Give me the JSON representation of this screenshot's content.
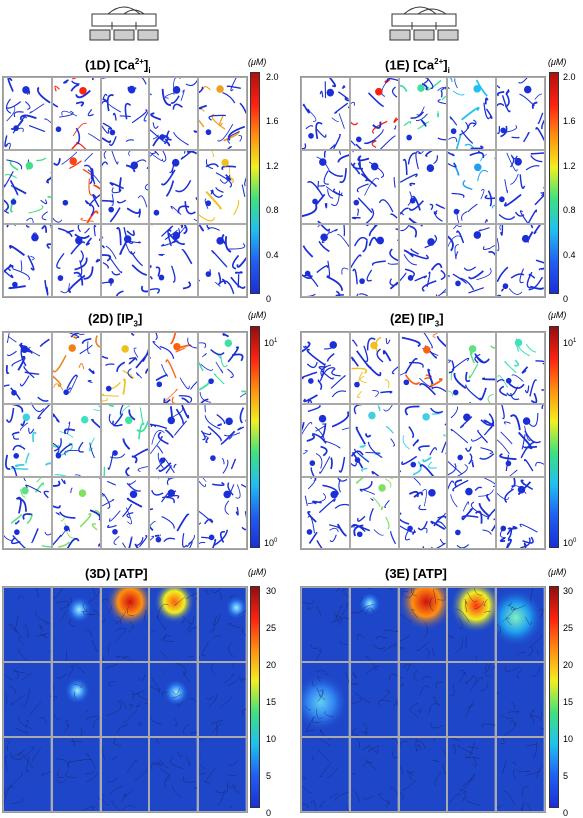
{
  "panels": [
    {
      "id": "1D",
      "title_main": "(1D) [Ca",
      "title_sup": "2+",
      "title_close": "]",
      "title_sub": "i",
      "unit": "(μM)",
      "ticks": [
        "2.0",
        "1.6",
        "1.2",
        "0.8",
        "0.4",
        "0"
      ]
    },
    {
      "id": "1E",
      "title_main": "(1E) [Ca",
      "title_sup": "2+",
      "title_close": "]",
      "title_sub": "i",
      "unit": "(μM)",
      "ticks": [
        "2.0",
        "1.6",
        "1.2",
        "0.8",
        "0.4",
        "0"
      ]
    },
    {
      "id": "2D",
      "title_main": "(2D) [IP",
      "title_sub": "3",
      "title_close": "]",
      "unit": "(μM)",
      "tick_top_base": "10",
      "tick_top_exp": "1",
      "tick_bot_base": "10",
      "tick_bot_exp": "0"
    },
    {
      "id": "2E",
      "title_main": "(2E) [IP",
      "title_sub": "3",
      "title_close": "]",
      "unit": "(μM)",
      "tick_top_base": "10",
      "tick_top_exp": "1",
      "tick_bot_base": "10",
      "tick_bot_exp": "0"
    },
    {
      "id": "3D",
      "title": "(3D) [ATP]",
      "unit": "(μM)",
      "ticks": [
        "30",
        "25",
        "20",
        "15",
        "10",
        "5",
        "0"
      ]
    },
    {
      "id": "3E",
      "title": "(3E) [ATP]",
      "unit": "(μM)",
      "ticks": [
        "30",
        "25",
        "20",
        "15",
        "10",
        "5",
        "0"
      ]
    }
  ],
  "colors": {
    "low": "#1a2fd6",
    "cell_bg": "#ffffff",
    "atp_bg": "#1d46c8"
  }
}
